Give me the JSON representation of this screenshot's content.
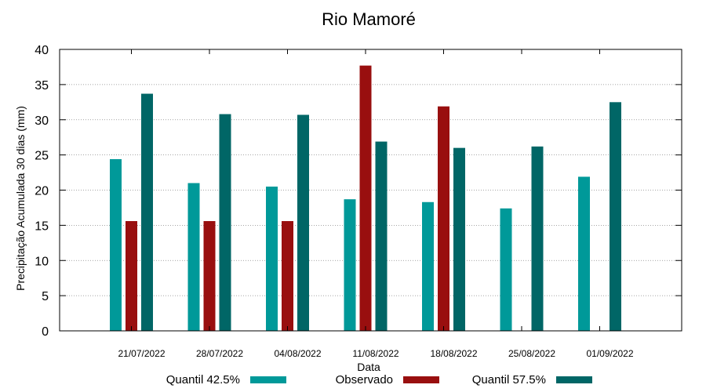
{
  "chart_data": {
    "type": "bar",
    "title": "Rio Mamoré",
    "xlabel": "Data",
    "ylabel": "Precipitação Acumulada 30 dias (mm)",
    "ylim": [
      0,
      40
    ],
    "yticks": [
      0,
      5,
      10,
      15,
      20,
      25,
      30,
      35,
      40
    ],
    "grid": true,
    "legend_position": "bottom",
    "categories": [
      "21/07/2022",
      "28/07/2022",
      "04/08/2022",
      "11/08/2022",
      "18/08/2022",
      "25/08/2022",
      "01/09/2022"
    ],
    "series": [
      {
        "name": "Quantil 42.5%",
        "color": "#009999",
        "values": [
          24.4,
          21.0,
          20.5,
          18.7,
          18.3,
          17.4,
          21.9
        ]
      },
      {
        "name": "Observado",
        "color": "#990f0f",
        "values": [
          15.6,
          15.6,
          15.6,
          37.7,
          31.9,
          null,
          null
        ]
      },
      {
        "name": "Quantil 57.5%",
        "color": "#006666",
        "values": [
          33.7,
          30.8,
          30.7,
          26.9,
          26.0,
          26.2,
          32.5
        ]
      }
    ]
  }
}
